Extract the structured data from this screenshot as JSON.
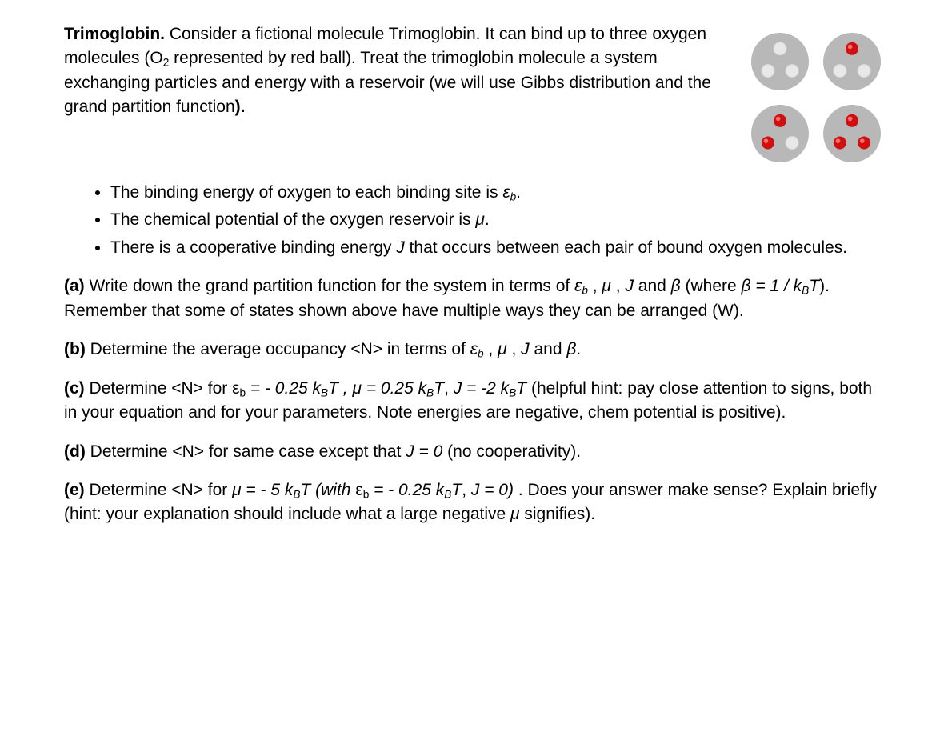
{
  "figure": {
    "molecule_fill": "#b8b8b8",
    "molecule_r": 36,
    "site_empty_fill": "#e8e8e8",
    "site_empty_stroke": "#d6d6d6",
    "site_filled_fill": "#d01010",
    "site_filled_highlight": "#ff7070",
    "site_r": 8,
    "gap": 18,
    "states": [
      [
        0,
        0,
        0
      ],
      [
        1,
        0,
        0
      ],
      [
        1,
        1,
        0
      ],
      [
        1,
        1,
        1
      ]
    ]
  },
  "intro": {
    "lead": "Trimoglobin.",
    "body_a": " Consider a fictional molecule Trimoglobin. It can bind up to three oxygen molecules (O",
    "o2sub": "2",
    "body_b": " represented by red ball). Treat the trimoglobin molecule a system exchanging particles and energy with a reservoir (we will use Gibbs distribution and the grand partition function",
    "close": ")."
  },
  "bullets": {
    "b1_a": "The binding energy of oxygen to each binding site is ",
    "b1_eps": "ε",
    "b1_sub": "b",
    "b1_end": ".",
    "b2_a": "The chemical potential of the oxygen reservoir is ",
    "b2_mu": "μ",
    "b2_end": ".",
    "b3_a": "There is a cooperative binding energy ",
    "b3_J": "J",
    "b3_b": " that occurs between each pair of bound oxygen molecules."
  },
  "qa": {
    "label": "(a)",
    "t1": " Write down the grand partition function for the system in terms of ",
    "eps": "ε",
    "eps_sub": "b",
    "comma1": " , ",
    "mu": "μ",
    "comma2": " , ",
    "J": "J",
    "and": "  and ",
    "beta": "β",
    "t2": " (where ",
    "beta2": "β",
    "eq": " = 1 / k",
    "ksub": "B",
    "T": "T",
    "t3": "). Remember that some of states shown above have multiple ways they can be arranged (W)."
  },
  "qb": {
    "label": "(b)",
    "t1": "  Determine the average occupancy <N> in terms of ",
    "eps": "ε",
    "eps_sub": "b",
    "comma1": " , ",
    "mu": "μ",
    "comma2": " , ",
    "J": "J",
    "and": "  and ",
    "beta": "β",
    "end": "."
  },
  "qc": {
    "label": "(c)",
    "t1": "  Determine <N> for ",
    "eps": "ε",
    "eps_sub": "b",
    "eq1": " = - 0.25 k",
    "k1sub": "B",
    "T1": "T",
    "comma1": " , ",
    "mu": "μ",
    "eq2": " = 0.25 k",
    "k2sub": "B",
    "T2": "T",
    "comma2": ", ",
    "J": "J",
    "eq3": " = -2 k",
    "k3sub": "B",
    "T3": "T",
    "hint": "   (helpful hint: pay close attention to signs, both in your equation and for your parameters. Note energies are negative, chem potential is positive)."
  },
  "qd": {
    "label": "(d)",
    "t1": "  Determine <N> for same case except that ",
    "J": "J",
    "eq": " = 0",
    "t2": " (no cooperativity)."
  },
  "qe": {
    "label": "(e)",
    "t1": " Determine <N> for ",
    "mu": "μ",
    "eq1": " = - 5 k",
    "k1sub": "B",
    "T1": "T",
    "open": " (with ",
    "eps": "ε",
    "eps_sub": "b",
    "eq2": " = - 0.25 k",
    "k2sub": "B",
    "T2": "T",
    "comma": ", ",
    "J": "J",
    "eq3": " = 0)",
    "t2": " .  Does your answer make sense? Explain briefly (hint: your explanation should include what a large negative ",
    "mu2": "μ",
    "t3": " signifies)."
  }
}
